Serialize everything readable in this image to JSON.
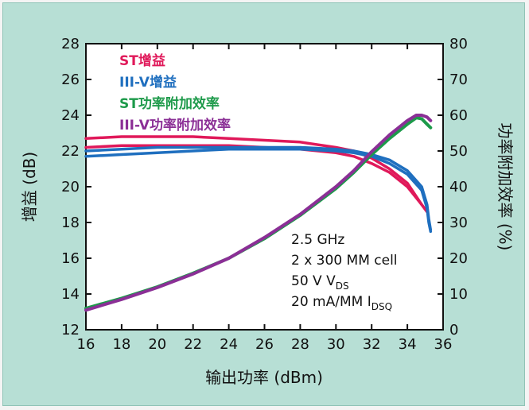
{
  "chart_data": {
    "type": "line",
    "xlabel": "输出功率 (dBm)",
    "ylabel_left": "增益 (dB)",
    "ylabel_right": "功率附加效率 (%)",
    "xlim": [
      16,
      36
    ],
    "ylim_left": [
      12,
      28
    ],
    "ylim_right": [
      0,
      80
    ],
    "x_ticks": [
      "16",
      "18",
      "20",
      "22",
      "24",
      "26",
      "28",
      "30",
      "32",
      "34",
      "36"
    ],
    "y_left_ticks": [
      "12",
      "14",
      "16",
      "18",
      "20",
      "22",
      "24",
      "26",
      "28"
    ],
    "y_right_ticks": [
      "0",
      "10",
      "20",
      "30",
      "40",
      "50",
      "60",
      "70",
      "80"
    ],
    "legend": [
      {
        "label": "ST增益",
        "color": "#e0195a"
      },
      {
        "label": "III-V增益",
        "color": "#1f6fbf"
      },
      {
        "label": "ST功率附加效率",
        "color": "#1d9a4a"
      },
      {
        "label": "III-V功率附加效率",
        "color": "#8b2f96"
      }
    ],
    "annotation": {
      "line1": "2.5 GHz",
      "line2": "2 x 300 MM cell",
      "line3_prefix": "50 V V",
      "line3_sub": "DS",
      "line4_prefix": "20 mA/MM I",
      "line4_sub": "DSQ"
    },
    "series": [
      {
        "name": "ST增益",
        "axis": "left",
        "color": "#e0195a",
        "x": [
          16,
          18,
          20,
          22,
          24,
          26,
          28,
          30,
          31,
          32,
          33,
          34,
          34.8,
          35.1
        ],
        "y": [
          22.7,
          22.8,
          22.8,
          22.8,
          22.7,
          22.6,
          22.5,
          22.2,
          22.0,
          21.6,
          21.0,
          20.2,
          19.0,
          18.6
        ]
      },
      {
        "name": "ST增益",
        "axis": "left",
        "color": "#e0195a",
        "x": [
          16,
          18,
          20,
          22,
          24,
          26,
          28,
          30,
          31,
          32,
          33,
          34,
          34.8,
          35.1
        ],
        "y": [
          22.2,
          22.3,
          22.3,
          22.3,
          22.3,
          22.2,
          22.1,
          21.9,
          21.7,
          21.3,
          20.8,
          20.0,
          19.0,
          18.6
        ]
      },
      {
        "name": "III-V增益",
        "axis": "left",
        "color": "#1f6fbf",
        "x": [
          16,
          18,
          20,
          22,
          24,
          26,
          28,
          30,
          31,
          32,
          33,
          34,
          34.8,
          35.1,
          35.2,
          35.3
        ],
        "y": [
          21.7,
          21.8,
          21.9,
          22.0,
          22.1,
          22.1,
          22.1,
          22.0,
          21.9,
          21.7,
          21.3,
          20.7,
          19.8,
          18.8,
          18.0,
          17.5
        ]
      },
      {
        "name": "III-V增益",
        "axis": "left",
        "color": "#1f6fbf",
        "x": [
          16,
          18,
          20,
          22,
          24,
          26,
          28,
          30,
          31,
          32,
          33,
          34,
          34.8,
          35.1,
          35.2,
          35.3
        ],
        "y": [
          22.0,
          22.1,
          22.2,
          22.2,
          22.2,
          22.2,
          22.2,
          22.1,
          22.0,
          21.8,
          21.5,
          20.9,
          20.0,
          19.0,
          18.2,
          17.6
        ]
      },
      {
        "name": "ST功率附加效率",
        "axis": "right",
        "color": "#1d9a4a",
        "x": [
          16,
          18,
          20,
          22,
          24,
          26,
          28,
          30,
          31,
          32,
          33,
          34,
          34.5,
          34.8,
          35.1,
          35.3
        ],
        "y": [
          6.0,
          8.8,
          12.0,
          15.8,
          20.0,
          25.5,
          32.0,
          39.5,
          44.0,
          49.0,
          53.5,
          57.5,
          59.3,
          59.0,
          57.5,
          56.5
        ]
      },
      {
        "name": "III-V功率附加效率",
        "axis": "right",
        "color": "#8b2f96",
        "x": [
          16,
          18,
          20,
          22,
          24,
          26,
          28,
          30,
          31,
          32,
          33,
          34,
          34.5,
          34.8,
          35.1,
          35.3
        ],
        "y": [
          5.5,
          8.5,
          11.8,
          15.6,
          20.0,
          25.8,
          32.3,
          40.0,
          44.5,
          49.8,
          54.5,
          58.5,
          60.0,
          60.0,
          59.5,
          58.5
        ]
      }
    ]
  }
}
